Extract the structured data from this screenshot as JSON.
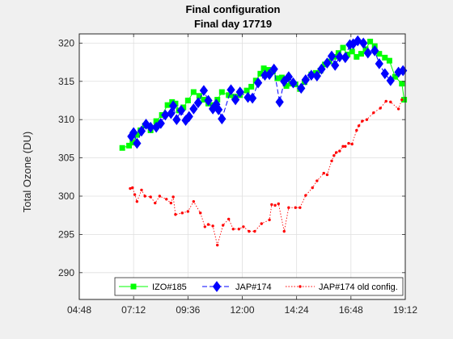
{
  "chart_data": {
    "type": "line",
    "title": "Final configuration",
    "subtitle": "Final day 17719",
    "xlabel": "",
    "ylabel": "Total Ozone (DU)",
    "x_ticks": [
      "04:48",
      "07:12",
      "09:36",
      "12:00",
      "14:24",
      "16:48",
      "19:12"
    ],
    "y_ticks": [
      "290",
      "295",
      "300",
      "305",
      "310",
      "315",
      "320"
    ],
    "xlim_hours": [
      4.8,
      19.2
    ],
    "ylim": [
      286.5,
      321.2
    ],
    "grid": true,
    "legend_position": "bottom-right",
    "series": [
      {
        "name": "IZO#185",
        "color": "#00ff00",
        "marker": "square",
        "line": "solid",
        "x_hours": [
          6.7,
          7.0,
          7.15,
          7.35,
          7.5,
          7.7,
          7.95,
          8.2,
          8.45,
          8.7,
          8.9,
          9.05,
          9.2,
          9.4,
          9.6,
          9.85,
          10.1,
          10.3,
          10.5,
          10.7,
          10.9,
          11.1,
          11.4,
          11.65,
          11.9,
          12.2,
          12.4,
          12.6,
          12.8,
          12.95,
          13.15,
          13.35,
          13.55,
          13.75,
          13.95,
          14.15,
          14.35,
          14.55,
          14.75,
          15.05,
          15.25,
          15.45,
          15.65,
          15.85,
          16.05,
          16.25,
          16.45,
          16.65,
          16.85,
          17.05,
          17.25,
          17.45,
          17.65,
          17.85,
          18.05,
          18.3,
          18.5,
          18.75,
          19.05,
          19.15
        ],
        "values": [
          306.3,
          306.6,
          307.0,
          308.0,
          308.6,
          309.2,
          308.6,
          309.8,
          310.6,
          311.9,
          312.3,
          312.1,
          311.2,
          311.6,
          312.5,
          313.6,
          313.1,
          312.6,
          312.1,
          311.9,
          312.6,
          313.6,
          313.2,
          313.0,
          313.2,
          313.8,
          314.3,
          315.1,
          316.0,
          316.7,
          316.5,
          316.3,
          315.4,
          315.5,
          314.4,
          314.7,
          314.6,
          314.0,
          314.9,
          315.9,
          316.1,
          316.4,
          317.2,
          317.6,
          318.2,
          318.7,
          319.4,
          318.5,
          318.9,
          318.2,
          318.6,
          319.2,
          320.2,
          319.6,
          318.6,
          318.1,
          317.7,
          315.6,
          314.7,
          312.6
        ]
      },
      {
        "name": "JAP#174",
        "color": "#0000ff",
        "marker": "diamond",
        "line": "dashed",
        "x_hours": [
          7.1,
          7.2,
          7.35,
          7.55,
          7.75,
          7.95,
          8.2,
          8.4,
          8.6,
          8.85,
          8.95,
          9.1,
          9.3,
          9.5,
          9.65,
          9.85,
          10.05,
          10.3,
          10.5,
          10.7,
          10.85,
          10.95,
          11.1,
          11.5,
          11.7,
          11.9,
          12.25,
          12.45,
          12.7,
          13.0,
          13.2,
          13.4,
          13.65,
          13.85,
          14.05,
          14.25,
          14.6,
          14.8,
          15.05,
          15.3,
          15.5,
          15.75,
          15.95,
          16.1,
          16.3,
          16.55,
          16.75,
          16.9,
          17.1,
          17.35,
          17.55,
          17.85,
          18.05,
          18.3,
          18.55,
          18.9,
          19.1
        ],
        "values": [
          307.8,
          308.3,
          306.9,
          308.5,
          309.4,
          309.0,
          309.0,
          309.5,
          310.6,
          310.8,
          311.8,
          310.0,
          311.2,
          309.9,
          310.4,
          311.4,
          312.2,
          313.8,
          312.5,
          311.4,
          312.0,
          311.3,
          310.1,
          313.9,
          312.6,
          313.6,
          312.9,
          312.8,
          314.8,
          315.8,
          315.9,
          316.6,
          312.3,
          315.0,
          315.6,
          314.8,
          314.1,
          315.2,
          315.8,
          315.7,
          316.6,
          317.4,
          318.3,
          317.1,
          318.2,
          318.1,
          319.8,
          319.9,
          320.3,
          320.0,
          318.7,
          319.0,
          317.3,
          316.0,
          315.1,
          316.2,
          316.4
        ]
      },
      {
        "name": "JAP#174 old config.",
        "color": "#ff0000",
        "marker": "dot",
        "line": "dotted",
        "x_hours": [
          7.05,
          7.15,
          7.25,
          7.35,
          7.55,
          7.7,
          7.95,
          8.15,
          8.35,
          8.65,
          8.85,
          8.95,
          9.05,
          9.35,
          9.6,
          9.85,
          10.15,
          10.35,
          10.5,
          10.7,
          10.9,
          11.15,
          11.4,
          11.6,
          11.85,
          12.05,
          12.3,
          12.55,
          12.85,
          13.2,
          13.3,
          13.45,
          13.6,
          13.85,
          14.05,
          14.35,
          14.55,
          14.8,
          15.1,
          15.3,
          15.6,
          15.75,
          15.95,
          16.05,
          16.15,
          16.3,
          16.45,
          16.55,
          16.7,
          16.85,
          17.05,
          17.15,
          17.3,
          17.5,
          17.8,
          18.1,
          18.35,
          18.55,
          18.9,
          19.05
        ],
        "values": [
          301.0,
          301.1,
          300.2,
          299.3,
          300.8,
          300.0,
          299.9,
          299.1,
          300.0,
          299.6,
          299.1,
          299.9,
          297.6,
          297.8,
          298.0,
          299.3,
          297.8,
          296.0,
          296.3,
          296.1,
          293.6,
          296.2,
          297.0,
          295.7,
          295.7,
          296.0,
          295.4,
          295.4,
          296.4,
          296.9,
          298.9,
          298.8,
          299.0,
          295.4,
          298.5,
          298.5,
          298.5,
          300.1,
          301.1,
          302.0,
          303.0,
          302.8,
          304.6,
          305.3,
          305.7,
          305.9,
          306.5,
          306.5,
          306.9,
          306.8,
          308.6,
          309.2,
          309.8,
          310.0,
          310.9,
          311.5,
          312.4,
          312.3,
          311.4,
          312.6
        ]
      }
    ]
  }
}
